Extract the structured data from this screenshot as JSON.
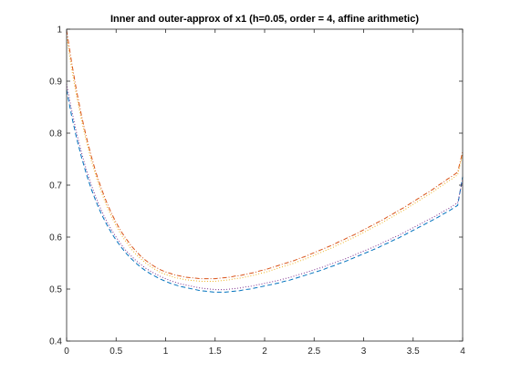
{
  "chart_data": {
    "type": "line",
    "title": "Inner and outer-approx of x1 (h=0.05, order = 4, affine arithmetic)",
    "xlabel": "",
    "ylabel": "",
    "xlim": [
      0,
      4
    ],
    "ylim": [
      0.4,
      1.0
    ],
    "x_ticks": [
      "0",
      "0.5",
      "1",
      "1.5",
      "2",
      "2.5",
      "3",
      "3.5",
      "4"
    ],
    "y_ticks": [
      "0.4",
      "0.5",
      "0.6",
      "0.7",
      "0.8",
      "0.9",
      "1"
    ],
    "grid": false,
    "legend": "none",
    "x": [
      0,
      0.05,
      0.1,
      0.15,
      0.2,
      0.25,
      0.3,
      0.35,
      0.4,
      0.45,
      0.5,
      0.55,
      0.6,
      0.65,
      0.7,
      0.75,
      0.8,
      0.85,
      0.9,
      0.95,
      1.0,
      1.05,
      1.1,
      1.15,
      1.2,
      1.25,
      1.3,
      1.35,
      1.4,
      1.45,
      1.5,
      1.55,
      1.6,
      1.65,
      1.7,
      1.75,
      1.8,
      1.85,
      1.9,
      1.95,
      2.0,
      2.05,
      2.1,
      2.15,
      2.2,
      2.25,
      2.3,
      2.35,
      2.4,
      2.45,
      2.5,
      2.55,
      2.6,
      2.65,
      2.7,
      2.75,
      2.8,
      2.85,
      2.9,
      2.95,
      3.0,
      3.05,
      3.1,
      3.15,
      3.2,
      3.25,
      3.3,
      3.35,
      3.4,
      3.45,
      3.5,
      3.55,
      3.6,
      3.65,
      3.7,
      3.75,
      3.8,
      3.85,
      3.9,
      3.95,
      4.0
    ],
    "series": [
      {
        "color": "#0072BD",
        "style": "dashed",
        "values": [
          0.883,
          0.834,
          0.791,
          0.754,
          0.721,
          0.692,
          0.667,
          0.645,
          0.626,
          0.609,
          0.594,
          0.581,
          0.569,
          0.559,
          0.55,
          0.542,
          0.535,
          0.529,
          0.524,
          0.519,
          0.515,
          0.511,
          0.508,
          0.505,
          0.503,
          0.501,
          0.499,
          0.497,
          0.496,
          0.495,
          0.494,
          0.494,
          0.494,
          0.495,
          0.496,
          0.497,
          0.499,
          0.5,
          0.502,
          0.504,
          0.506,
          0.508,
          0.51,
          0.512,
          0.515,
          0.517,
          0.52,
          0.523,
          0.526,
          0.529,
          0.532,
          0.535,
          0.538,
          0.542,
          0.545,
          0.549,
          0.552,
          0.556,
          0.56,
          0.564,
          0.568,
          0.572,
          0.576,
          0.58,
          0.585,
          0.589,
          0.594,
          0.598,
          0.603,
          0.608,
          0.613,
          0.618,
          0.623,
          0.628,
          0.633,
          0.638,
          0.644,
          0.649,
          0.655,
          0.661,
          0.716
        ]
      },
      {
        "color": "#D95319",
        "style": "dashdot",
        "values": [
          0.998,
          0.937,
          0.882,
          0.834,
          0.792,
          0.755,
          0.722,
          0.694,
          0.669,
          0.647,
          0.628,
          0.611,
          0.597,
          0.584,
          0.573,
          0.563,
          0.555,
          0.548,
          0.542,
          0.537,
          0.533,
          0.53,
          0.527,
          0.525,
          0.523,
          0.522,
          0.521,
          0.52,
          0.52,
          0.52,
          0.52,
          0.521,
          0.522,
          0.523,
          0.525,
          0.526,
          0.528,
          0.53,
          0.532,
          0.535,
          0.537,
          0.54,
          0.543,
          0.546,
          0.549,
          0.552,
          0.555,
          0.559,
          0.562,
          0.566,
          0.57,
          0.574,
          0.578,
          0.582,
          0.586,
          0.591,
          0.595,
          0.6,
          0.604,
          0.609,
          0.614,
          0.619,
          0.624,
          0.629,
          0.634,
          0.64,
          0.645,
          0.651,
          0.656,
          0.662,
          0.668,
          0.674,
          0.68,
          0.686,
          0.692,
          0.699,
          0.705,
          0.712,
          0.718,
          0.725,
          0.764
        ]
      },
      {
        "color": "#EDB120",
        "style": "dotted",
        "values": [
          0.985,
          0.925,
          0.872,
          0.825,
          0.784,
          0.747,
          0.715,
          0.687,
          0.662,
          0.641,
          0.622,
          0.605,
          0.591,
          0.578,
          0.567,
          0.558,
          0.55,
          0.543,
          0.537,
          0.532,
          0.528,
          0.525,
          0.522,
          0.52,
          0.518,
          0.517,
          0.516,
          0.515,
          0.515,
          0.515,
          0.515,
          0.516,
          0.517,
          0.518,
          0.52,
          0.521,
          0.523,
          0.525,
          0.527,
          0.53,
          0.532,
          0.535,
          0.538,
          0.541,
          0.544,
          0.547,
          0.55,
          0.554,
          0.557,
          0.561,
          0.565,
          0.569,
          0.573,
          0.577,
          0.581,
          0.586,
          0.59,
          0.595,
          0.599,
          0.604,
          0.609,
          0.614,
          0.619,
          0.624,
          0.629,
          0.635,
          0.64,
          0.646,
          0.651,
          0.657,
          0.663,
          0.669,
          0.675,
          0.681,
          0.687,
          0.694,
          0.7,
          0.707,
          0.713,
          0.72,
          0.759
        ]
      },
      {
        "color": "#7E2F8E",
        "style": "dotted",
        "values": [
          0.895,
          0.845,
          0.801,
          0.763,
          0.729,
          0.7,
          0.674,
          0.652,
          0.632,
          0.615,
          0.6,
          0.586,
          0.574,
          0.564,
          0.555,
          0.547,
          0.54,
          0.534,
          0.529,
          0.524,
          0.52,
          0.516,
          0.513,
          0.51,
          0.508,
          0.506,
          0.504,
          0.502,
          0.501,
          0.5,
          0.499,
          0.499,
          0.499,
          0.5,
          0.501,
          0.502,
          0.504,
          0.505,
          0.507,
          0.509,
          0.511,
          0.513,
          0.515,
          0.517,
          0.52,
          0.522,
          0.525,
          0.528,
          0.531,
          0.534,
          0.537,
          0.54,
          0.543,
          0.547,
          0.55,
          0.554,
          0.557,
          0.561,
          0.565,
          0.569,
          0.573,
          0.577,
          0.581,
          0.585,
          0.59,
          0.594,
          0.599,
          0.603,
          0.608,
          0.613,
          0.618,
          0.623,
          0.628,
          0.633,
          0.638,
          0.643,
          0.649,
          0.654,
          0.66,
          0.666,
          0.711
        ]
      }
    ]
  }
}
